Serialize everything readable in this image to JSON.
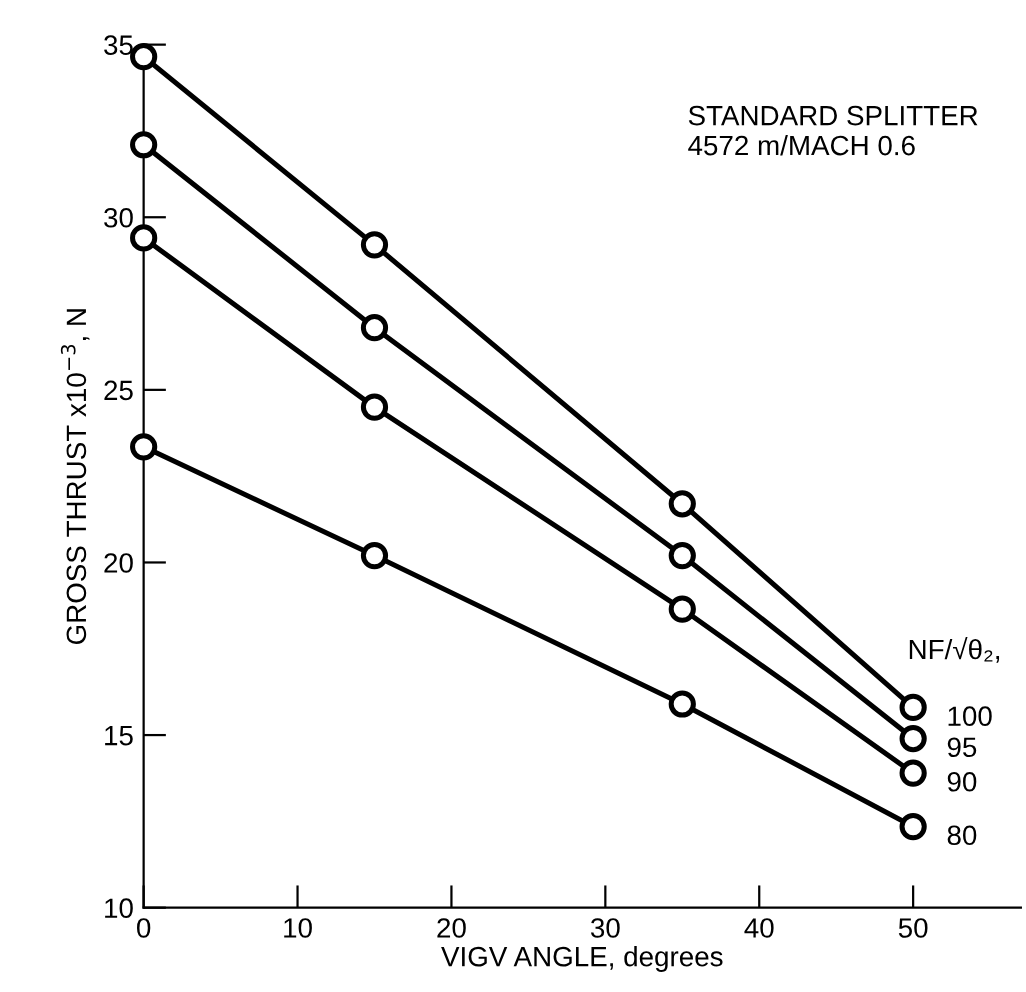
{
  "chart_data": {
    "type": "line",
    "xlabel": "VIGV ANGLE, degrees",
    "ylabel": "GROSS THRUST x10$^{−3}$, N",
    "legend_title": "NF/√θ₂,",
    "annotations": [
      "STANDARD SPLITTER\n4572 m/MACH 0.6"
    ],
    "x": [
      0,
      15,
      35,
      50
    ],
    "series": [
      {
        "name": "100",
        "color": "#000000",
        "values": [
          34.65,
          29.2,
          21.7,
          15.8
        ]
      },
      {
        "name": "95",
        "color": "#000000",
        "values": [
          32.1,
          26.8,
          20.2,
          14.9
        ]
      },
      {
        "name": "90",
        "color": "#000000",
        "values": [
          29.4,
          24.5,
          18.65,
          13.9
        ]
      },
      {
        "name": "80",
        "color": "#000000",
        "values": [
          23.35,
          20.2,
          15.9,
          12.35
        ]
      }
    ],
    "xlim": [
      0,
      57
    ],
    "ylim": [
      10,
      35
    ],
    "xticks": [
      0,
      10,
      20,
      30,
      40,
      50
    ],
    "yticks": [
      10,
      15,
      20,
      25,
      30,
      35
    ],
    "grid": false,
    "legend": false,
    "marker": "circle",
    "line_style": "solid"
  }
}
